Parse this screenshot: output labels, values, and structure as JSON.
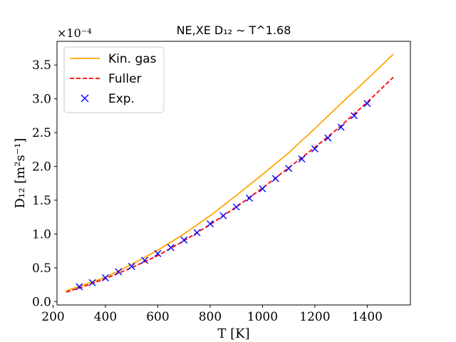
{
  "chart_data": {
    "type": "line",
    "title": "NE,XE D₁₂ ∼ T^1.68",
    "xlabel": "T [K]",
    "ylabel": "D₁₂ [m²s⁻¹]",
    "y_offset_label": "×10⁻⁴",
    "xlim": [
      215,
      1565
    ],
    "ylim": [
      -0.05,
      3.85
    ],
    "x_ticks": [
      200,
      400,
      600,
      800,
      1000,
      1200,
      1400
    ],
    "y_ticks": [
      0.0,
      0.5,
      1.0,
      1.5,
      2.0,
      2.5,
      3.0,
      3.5
    ],
    "x_tick_labels": [
      "200",
      "400",
      "600",
      "800",
      "1000",
      "1200",
      "1400"
    ],
    "y_tick_labels": [
      "0.0",
      "0.5",
      "1.0",
      "1.5",
      "2.0",
      "2.5",
      "3.0",
      "3.5"
    ],
    "legend_position": "upper-left",
    "series": [
      {
        "name": "Kin. gas",
        "style": "solid-line",
        "color": "#ffa500",
        "x": [
          250,
          300,
          400,
          500,
          600,
          700,
          800,
          900,
          1000,
          1100,
          1200,
          1300,
          1400,
          1500
        ],
        "y": [
          0.16,
          0.225,
          0.36,
          0.55,
          0.76,
          1.0,
          1.27,
          1.57,
          1.88,
          2.2,
          2.56,
          2.93,
          3.29,
          3.66
        ]
      },
      {
        "name": "Fuller",
        "style": "dashed-line",
        "color": "#ff0000",
        "x": [
          250,
          300,
          400,
          500,
          600,
          700,
          800,
          900,
          1000,
          1100,
          1200,
          1300,
          1400,
          1500
        ],
        "y": [
          0.14,
          0.2,
          0.34,
          0.5,
          0.68,
          0.9,
          1.14,
          1.4,
          1.68,
          1.98,
          2.28,
          2.6,
          2.95,
          3.32
        ]
      },
      {
        "name": "Exp.",
        "style": "x-marker",
        "color": "#0000ff",
        "x": [
          300,
          350,
          400,
          450,
          500,
          550,
          600,
          650,
          700,
          750,
          800,
          850,
          900,
          950,
          1000,
          1050,
          1100,
          1150,
          1200,
          1250,
          1300,
          1350,
          1400
        ],
        "y": [
          0.22,
          0.28,
          0.35,
          0.44,
          0.52,
          0.61,
          0.71,
          0.8,
          0.91,
          1.02,
          1.15,
          1.27,
          1.4,
          1.53,
          1.67,
          1.82,
          1.97,
          2.11,
          2.26,
          2.42,
          2.58,
          2.75,
          2.93
        ]
      }
    ]
  }
}
